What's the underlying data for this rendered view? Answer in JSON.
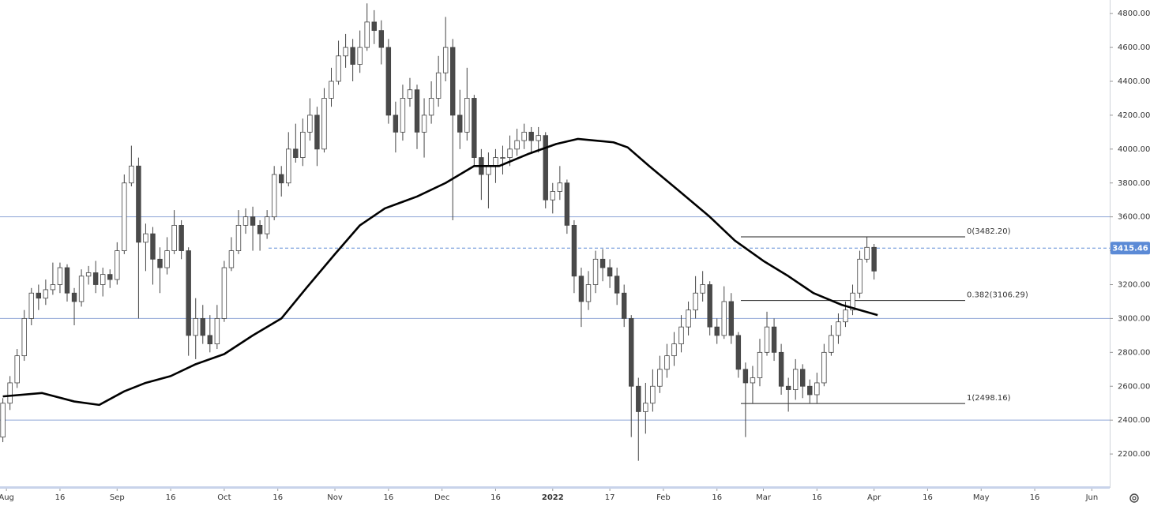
{
  "chart_data": {
    "type": "candlestick",
    "x": [
      -1,
      1,
      3,
      5,
      7,
      9,
      11,
      13,
      15,
      17,
      19,
      21,
      23,
      25,
      27,
      29,
      31,
      33,
      35,
      37,
      39,
      41,
      43,
      45,
      47,
      49,
      51,
      53,
      55,
      57,
      59,
      61,
      63,
      65,
      67,
      69,
      71,
      73,
      75,
      77,
      79,
      81,
      83,
      85,
      87,
      89,
      91,
      93,
      95,
      97,
      99,
      101,
      103,
      105,
      107,
      109,
      111,
      113,
      115,
      117,
      119,
      121,
      123,
      125,
      127,
      129,
      131,
      133,
      135,
      137,
      139,
      141,
      143,
      145,
      147,
      149,
      151,
      153,
      155,
      157,
      159,
      161,
      163,
      165,
      167,
      169,
      171,
      173,
      175,
      177,
      179,
      181,
      183,
      185,
      187,
      189,
      191,
      193,
      195,
      197,
      199,
      201,
      203,
      205,
      207,
      209,
      211,
      213,
      215,
      217,
      219,
      221,
      223,
      225,
      227,
      229,
      231,
      233,
      235,
      237,
      239,
      241,
      243
    ],
    "open": [
      2300,
      2500,
      2620,
      2780,
      3000,
      3150,
      3120,
      3170,
      3200,
      3300,
      3150,
      3100,
      3250,
      3270,
      3200,
      3260,
      3230,
      3400,
      3800,
      3900,
      3450,
      3500,
      3350,
      3300,
      3400,
      3550,
      3400,
      2900,
      3000,
      2900,
      2850,
      3000,
      3300,
      3400,
      3550,
      3600,
      3550,
      3500,
      3600,
      3850,
      3800,
      4000,
      3950,
      4100,
      4200,
      4000,
      4300,
      4400,
      4550,
      4600,
      4500,
      4600,
      4750,
      4700,
      4600,
      4200,
      4100,
      4300,
      4350,
      4100,
      4200,
      4300,
      4450,
      4600,
      4200,
      4100,
      4300,
      3950,
      3850,
      3900,
      3950,
      3950,
      4000,
      4050,
      4100,
      4050,
      4080,
      3700,
      3750,
      3800,
      3550,
      3250,
      3100,
      3200,
      3350,
      3300,
      3250,
      3150,
      3000,
      2600,
      2450,
      2500,
      2600,
      2700,
      2780,
      2850,
      2950,
      3050,
      3150,
      3200,
      2950,
      2900,
      3100,
      2900,
      2700,
      2620,
      2650,
      2800,
      2950,
      2800,
      2600,
      2580,
      2700,
      2600,
      2550,
      2620,
      2800,
      2900,
      2980,
      3050,
      3150,
      3350,
      3420
    ],
    "high": [
      2530,
      2660,
      2820,
      3050,
      3180,
      3200,
      3230,
      3330,
      3330,
      3320,
      3180,
      3290,
      3310,
      3340,
      3300,
      3290,
      3450,
      3850,
      4020,
      3950,
      3560,
      3540,
      3420,
      3480,
      3640,
      3580,
      3420,
      3120,
      3080,
      3020,
      3080,
      3340,
      3480,
      3640,
      3650,
      3660,
      3580,
      3640,
      3900,
      3900,
      4100,
      4150,
      4180,
      4300,
      4250,
      4360,
      4480,
      4640,
      4680,
      4650,
      4700,
      4860,
      4820,
      4760,
      4650,
      4280,
      4380,
      4420,
      4380,
      4300,
      4400,
      4550,
      4780,
      4650,
      4350,
      4480,
      4320,
      4000,
      3980,
      4000,
      4020,
      4080,
      4120,
      4150,
      4130,
      4130,
      4100,
      3800,
      3900,
      3820,
      3580,
      3300,
      3280,
      3400,
      3410,
      3350,
      3300,
      3200,
      3020,
      2650,
      2620,
      2700,
      2780,
      2850,
      2920,
      3020,
      3100,
      3250,
      3280,
      3220,
      3000,
      3190,
      3150,
      2920,
      2740,
      2720,
      2880,
      3040,
      3000,
      2850,
      2650,
      2760,
      2730,
      2640,
      2680,
      2850,
      2960,
      3030,
      3100,
      3200,
      3400,
      3480,
      3440
    ],
    "low": [
      2270,
      2460,
      2590,
      2750,
      2960,
      3050,
      3080,
      3140,
      3150,
      3100,
      2960,
      3070,
      3200,
      3150,
      3130,
      3180,
      3200,
      3380,
      3780,
      3000,
      3280,
      3200,
      3150,
      3260,
      3380,
      3350,
      2780,
      2760,
      2850,
      2800,
      2820,
      2980,
      3280,
      3380,
      3500,
      3400,
      3400,
      3470,
      3580,
      3720,
      3780,
      3920,
      3900,
      4050,
      3900,
      3980,
      4250,
      4380,
      4480,
      4400,
      4450,
      4580,
      4620,
      4500,
      4150,
      3980,
      4050,
      4250,
      4000,
      3950,
      4150,
      4250,
      4400,
      3580,
      4000,
      4050,
      3900,
      3700,
      3650,
      3800,
      3850,
      3900,
      3960,
      4000,
      3980,
      3980,
      3650,
      3620,
      3700,
      3500,
      3150,
      2950,
      3050,
      3150,
      3220,
      3180,
      3080,
      2950,
      2300,
      2160,
      2320,
      2450,
      2560,
      2650,
      2720,
      2800,
      2900,
      3000,
      3100,
      2900,
      2850,
      2880,
      2850,
      2650,
      2300,
      2500,
      2600,
      2780,
      2750,
      2550,
      2450,
      2520,
      2530,
      2500,
      2500,
      2600,
      2780,
      2850,
      2950,
      3020,
      3120,
      3330,
      3230
    ],
    "close": [
      2500,
      2620,
      2780,
      3000,
      3150,
      3120,
      3170,
      3200,
      3300,
      3150,
      3100,
      3250,
      3270,
      3200,
      3260,
      3230,
      3400,
      3800,
      3900,
      3450,
      3500,
      3350,
      3300,
      3400,
      3550,
      3400,
      2900,
      3000,
      2900,
      2850,
      3000,
      3300,
      3400,
      3550,
      3600,
      3550,
      3500,
      3600,
      3850,
      3800,
      4000,
      3950,
      4100,
      4200,
      4000,
      4300,
      4400,
      4550,
      4600,
      4500,
      4600,
      4750,
      4700,
      4600,
      4200,
      4100,
      4300,
      4350,
      4100,
      4200,
      4300,
      4450,
      4600,
      4200,
      4100,
      4300,
      3950,
      3850,
      3900,
      3950,
      3950,
      4000,
      4050,
      4100,
      4050,
      4080,
      3700,
      3750,
      3800,
      3550,
      3250,
      3100,
      3200,
      3350,
      3300,
      3250,
      3150,
      3000,
      2600,
      2450,
      2500,
      2600,
      2700,
      2780,
      2850,
      2950,
      3050,
      3150,
      3200,
      2950,
      2900,
      3100,
      2900,
      2700,
      2620,
      2650,
      2800,
      2950,
      2800,
      2600,
      2580,
      2700,
      2600,
      2550,
      2620,
      2800,
      2900,
      2980,
      3050,
      3150,
      3350,
      3420,
      3280
    ],
    "up_color": "#ffffff",
    "down_color": "#4a4a4a",
    "xlim": [
      -1.8,
      309
    ],
    "ylim": [
      2000,
      4880
    ],
    "yticks": [
      {
        "value": 2200,
        "label": "2200.00"
      },
      {
        "value": 2400,
        "label": "2400.00"
      },
      {
        "value": 2600,
        "label": "2600.00"
      },
      {
        "value": 2800,
        "label": "2800.00"
      },
      {
        "value": 3000,
        "label": "3000.00"
      },
      {
        "value": 3200,
        "label": "3200.00"
      },
      {
        "value": 3400,
        "label": "3400.00"
      },
      {
        "value": 3600,
        "label": "3600.00"
      },
      {
        "value": 3800,
        "label": "3800.00"
      },
      {
        "value": 4000,
        "label": "4000.00"
      },
      {
        "value": 4200,
        "label": "4200.00"
      },
      {
        "value": 4400,
        "label": "4400.00"
      },
      {
        "value": 4600,
        "label": "4600.00"
      },
      {
        "value": 4800,
        "label": "4800.00"
      }
    ],
    "xticks": [
      {
        "value": 0,
        "label": "Aug"
      },
      {
        "value": 15,
        "label": "16"
      },
      {
        "value": 31,
        "label": "Sep"
      },
      {
        "value": 46,
        "label": "16"
      },
      {
        "value": 61,
        "label": "Oct"
      },
      {
        "value": 76,
        "label": "16"
      },
      {
        "value": 92,
        "label": "Nov"
      },
      {
        "value": 107,
        "label": "16"
      },
      {
        "value": 122,
        "label": "Dec"
      },
      {
        "value": 137,
        "label": "16"
      },
      {
        "value": 153,
        "label": "2022"
      },
      {
        "value": 169,
        "label": "17"
      },
      {
        "value": 184,
        "label": "Feb"
      },
      {
        "value": 199,
        "label": "16"
      },
      {
        "value": 212,
        "label": "Mar"
      },
      {
        "value": 227,
        "label": "16"
      },
      {
        "value": 243,
        "label": "Apr"
      },
      {
        "value": 258,
        "label": "16"
      },
      {
        "value": 273,
        "label": "May"
      },
      {
        "value": 288,
        "label": "16"
      },
      {
        "value": 304,
        "label": "Jun"
      }
    ],
    "ma": {
      "color": "#000000",
      "x": [
        -1,
        10,
        19,
        26,
        33,
        39,
        46,
        53,
        61,
        69,
        77,
        84,
        92,
        99,
        106,
        115,
        123,
        131,
        138,
        146,
        154,
        160,
        170,
        174,
        180,
        188,
        197,
        204,
        212,
        219,
        226,
        234,
        244
      ],
      "values": [
        2540,
        2560,
        2510,
        2490,
        2570,
        2620,
        2660,
        2730,
        2790,
        2900,
        3000,
        3180,
        3380,
        3550,
        3650,
        3720,
        3800,
        3900,
        3900,
        3970,
        4030,
        4060,
        4040,
        4010,
        3900,
        3760,
        3600,
        3460,
        3340,
        3250,
        3150,
        3080,
        3020
      ]
    },
    "levels": {
      "color": "#8fa6d6",
      "values": [
        3600,
        3000,
        2400
      ]
    },
    "last_price": 3415.46,
    "last_price_color": "#5b8ad6",
    "fib": [
      {
        "label": "0(3482.20)",
        "value": 3482.2
      },
      {
        "label": "0.382(3106.29)",
        "value": 3106.29
      },
      {
        "label": "1(2498.16)",
        "value": 2498.16
      }
    ]
  }
}
